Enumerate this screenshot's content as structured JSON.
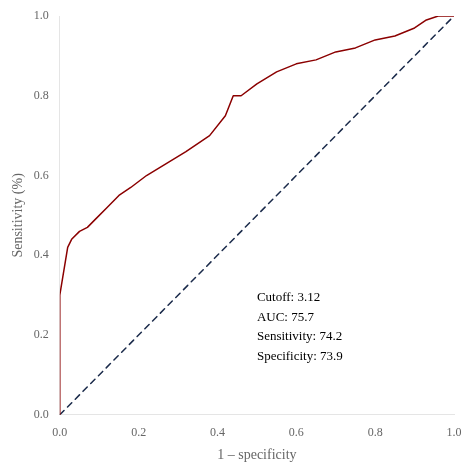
{
  "chart_data": {
    "type": "line",
    "xlabel": "1 – specificity",
    "ylabel": "Sensitivity (%)",
    "annotation": "Cutoff: 3.12\nAUC: 75.7\nSensitivity: 74.2\nSpecificity: 73.9",
    "series": [
      {
        "x": [
          0.0,
          0.0,
          0.02,
          0.03,
          0.05,
          0.07,
          0.09,
          0.12,
          0.15,
          0.18,
          0.22,
          0.27,
          0.32,
          0.38,
          0.42,
          0.44,
          0.46,
          0.5,
          0.55,
          0.6,
          0.65,
          0.7,
          0.75,
          0.8,
          0.85,
          0.9,
          0.93,
          0.96,
          1.0
        ],
        "values": [
          0.0,
          0.3,
          0.42,
          0.44,
          0.46,
          0.47,
          0.49,
          0.52,
          0.55,
          0.57,
          0.6,
          0.63,
          0.66,
          0.7,
          0.75,
          0.8,
          0.8,
          0.83,
          0.86,
          0.88,
          0.89,
          0.91,
          0.92,
          0.94,
          0.95,
          0.97,
          0.99,
          1.0,
          1.0
        ],
        "color": "#8B0000",
        "line_style": "solid"
      },
      {
        "x": [
          0.0,
          1.0
        ],
        "values": [
          0.0,
          1.0
        ],
        "color": "#1a2a4a",
        "line_style": "dashed"
      }
    ],
    "xlim": [
      0.0,
      1.0
    ],
    "ylim": [
      0.0,
      1.0
    ],
    "xticks": [
      {
        "value": 0.0,
        "label": "0.0"
      },
      0.2,
      0.4,
      0.6,
      0.8,
      {
        "value": 1.0,
        "label": "1.0"
      }
    ],
    "yticks": [
      {
        "value": 0.0,
        "label": "0.0"
      },
      0.2,
      0.4,
      0.6,
      0.8,
      {
        "value": 1.0,
        "label": "1.0"
      }
    ],
    "grid": false
  }
}
